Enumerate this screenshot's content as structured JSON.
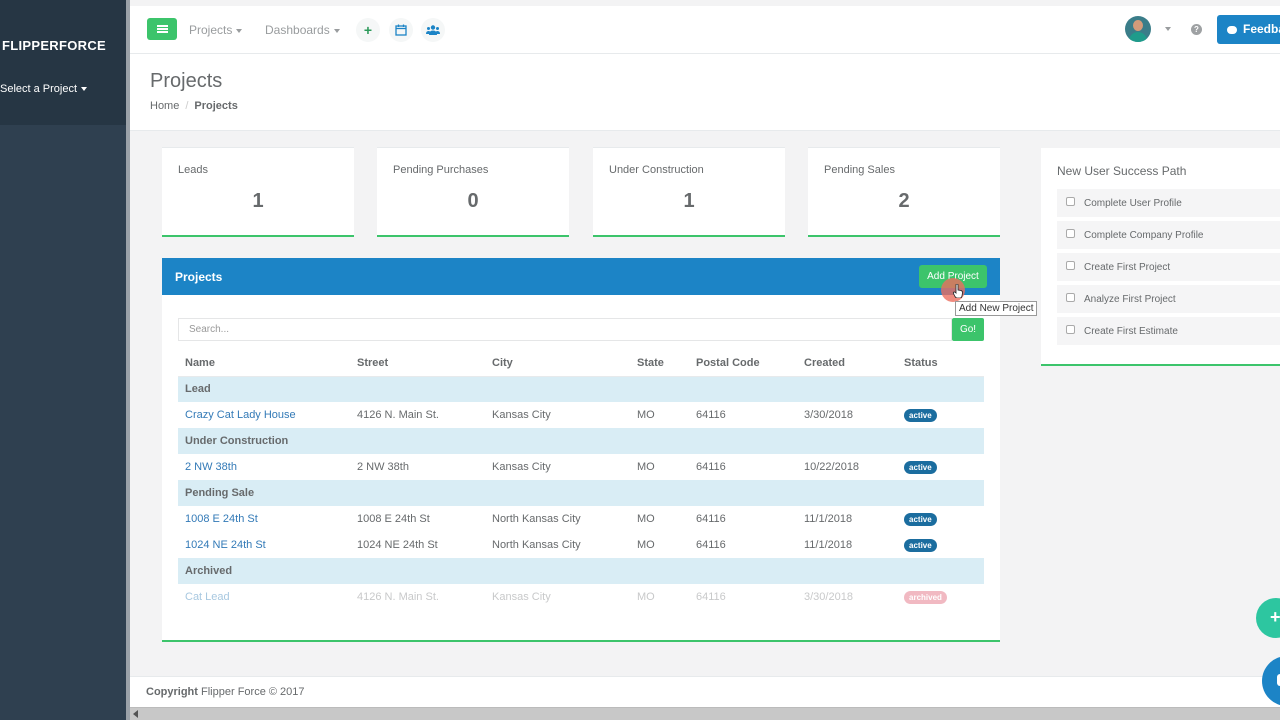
{
  "sidebar": {
    "brand": "FLIPPERFORCE",
    "project_select": "Select a Project"
  },
  "topnav": {
    "projects_label": "Projects",
    "dashboards_label": "Dashboards",
    "add_icon_glyph": "+",
    "help_glyph": "?",
    "feedback_label": "Feedback"
  },
  "heading": {
    "title": "Projects",
    "breadcrumb": {
      "home": "Home",
      "current": "Projects"
    }
  },
  "stats": [
    {
      "label": "Leads",
      "value": "1"
    },
    {
      "label": "Pending Purchases",
      "value": "0"
    },
    {
      "label": "Under Construction",
      "value": "1"
    },
    {
      "label": "Pending Sales",
      "value": "2"
    }
  ],
  "projects_panel": {
    "title": "Projects",
    "add_button": "Add Project",
    "tooltip": "Add New Project",
    "search_placeholder": "Search...",
    "go_button": "Go!",
    "columns": [
      "Name",
      "Street",
      "City",
      "State",
      "Postal Code",
      "Created",
      "Status"
    ],
    "groups": [
      {
        "name": "Lead",
        "rows": [
          {
            "name": "Crazy Cat Lady House",
            "street": "4126 N. Main St.",
            "city": "Kansas City",
            "state": "MO",
            "postal": "64116",
            "created": "3/30/2018",
            "status": "active"
          }
        ]
      },
      {
        "name": "Under Construction",
        "rows": [
          {
            "name": "2 NW 38th",
            "street": "2 NW 38th",
            "city": "Kansas City",
            "state": "MO",
            "postal": "64116",
            "created": "10/22/2018",
            "status": "active"
          }
        ]
      },
      {
        "name": "Pending Sale",
        "rows": [
          {
            "name": "1008 E 24th St",
            "street": "1008 E 24th St",
            "city": "North Kansas City",
            "state": "MO",
            "postal": "64116",
            "created": "11/1/2018",
            "status": "active"
          },
          {
            "name": "1024 NE 24th St",
            "street": "1024 NE 24th St",
            "city": "North Kansas City",
            "state": "MO",
            "postal": "64116",
            "created": "11/1/2018",
            "status": "active"
          }
        ]
      },
      {
        "name": "Archived",
        "rows": [
          {
            "name": "Cat Lead",
            "street": "4126 N. Main St.",
            "city": "Kansas City",
            "state": "MO",
            "postal": "64116",
            "created": "3/30/2018",
            "status": "archived"
          }
        ]
      }
    ]
  },
  "success_path": {
    "title": "New User Success Path",
    "items": [
      "Complete User Profile",
      "Complete Company Profile",
      "Create First Project",
      "Analyze First Project",
      "Create First Estimate"
    ]
  },
  "footer": {
    "copyright_label": "Copyright",
    "copyright_text": "Flipper Force © 2017"
  },
  "fab": {
    "plus_glyph": "+"
  },
  "colors": {
    "sidebar": "#2f4050",
    "accent_green": "#3cc46b",
    "primary_blue": "#1c84c6",
    "group_row": "#d9edf5"
  }
}
